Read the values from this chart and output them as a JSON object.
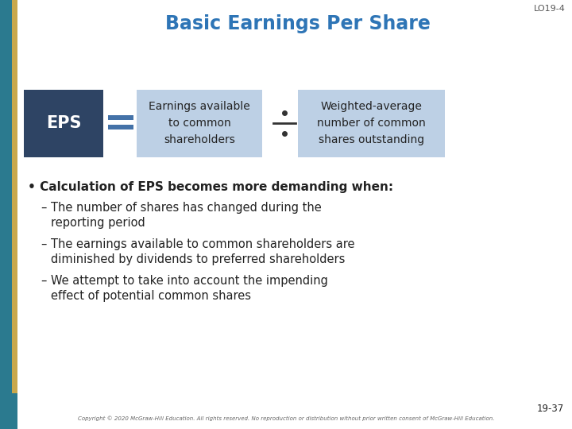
{
  "title": "Basic Earnings Per Share",
  "lo_label": "LO19-4",
  "page_num": "19-37",
  "copyright": "Copyright © 2020 McGraw-Hill Education. All rights reserved. No reproduction or distribution without prior written consent of McGraw-Hill Education.",
  "eps_box_text": "EPS",
  "eps_box_color": "#2E4464",
  "middle_box_text": "Earnings available\nto common\nshareholders",
  "middle_box_color": "#BDD0E5",
  "right_box_text": "Weighted-average\nnumber of common\nshares outstanding",
  "right_box_color": "#BDD0E5",
  "equals_color": "#4472A8",
  "divide_dot_color": "#333333",
  "divide_line_color": "#333333",
  "title_color": "#2E75B6",
  "lo_color": "#555555",
  "bullet_header": "Calculation of EPS becomes more demanding when:",
  "bullet1_line1": "– The number of shares has changed during the",
  "bullet1_line2": "   reporting period",
  "bullet2_line1": "– The earnings available to common shareholders are",
  "bullet2_line2": "   diminished by dividends to preferred shareholders",
  "bullet3_line1": "– We attempt to take into account the impending",
  "bullet3_line2": "   effect of potential common shares",
  "text_color": "#222222",
  "left_bar_gold_color": "#C9A84C",
  "left_bar_teal_color": "#2B7A8F",
  "left_bar_navy_color": "#2E4464",
  "bg_color": "#FFFFFF",
  "figw": 7.2,
  "figh": 5.4,
  "dpi": 100
}
